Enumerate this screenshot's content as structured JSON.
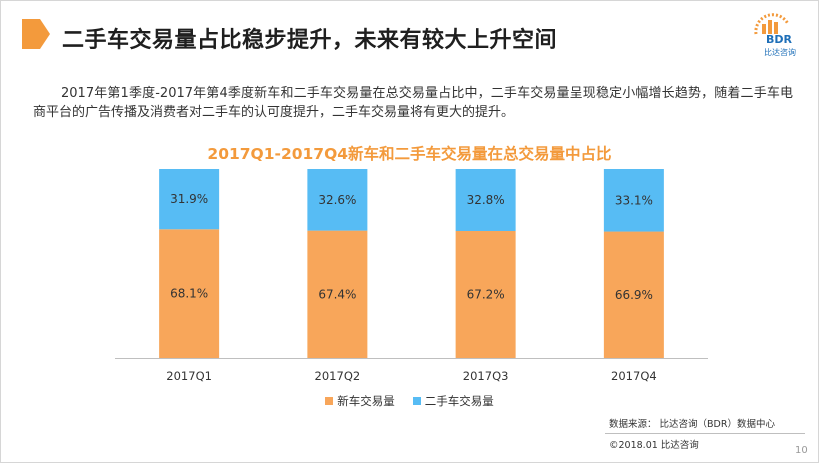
{
  "header": {
    "title": "二手车交易量占比稳步提升，未来有较大上升空间",
    "accent": "#f39a3c"
  },
  "logo": {
    "text": "BDR",
    "subtext": "比达咨询"
  },
  "description": "2017年第1季度-2017年第4季度新车和二手车交易量在总交易量占比中，二手车交易量呈现稳定小幅增长趋势，随着二手车电商平台的广告传播及消费者对二手车的认可度提升，二手车交易量将有更大的提升。",
  "chart_data": {
    "type": "bar",
    "stacked": true,
    "title": "2017Q1-2017Q4新车和二手车交易量在总交易量中占比",
    "categories": [
      "2017Q1",
      "2017Q2",
      "2017Q3",
      "2017Q4"
    ],
    "series": [
      {
        "name": "新车交易量",
        "values": [
          68.1,
          67.4,
          67.2,
          66.9
        ],
        "labels": [
          "68.1%",
          "67.4%",
          "67.2%",
          "66.9%"
        ],
        "color": "#f8a65a"
      },
      {
        "name": "二手车交易量",
        "values": [
          31.9,
          32.6,
          32.8,
          33.1
        ],
        "labels": [
          "31.9%",
          "32.6%",
          "32.8%",
          "33.1%"
        ],
        "color": "#57bcf4"
      }
    ],
    "ylim": [
      0,
      100
    ],
    "grid": false,
    "legend": "bottom"
  },
  "footer": {
    "source": "数据来源： 比达咨询（BDR）数据中心",
    "copyright": "©2018.01   比达咨询",
    "page": "10"
  }
}
